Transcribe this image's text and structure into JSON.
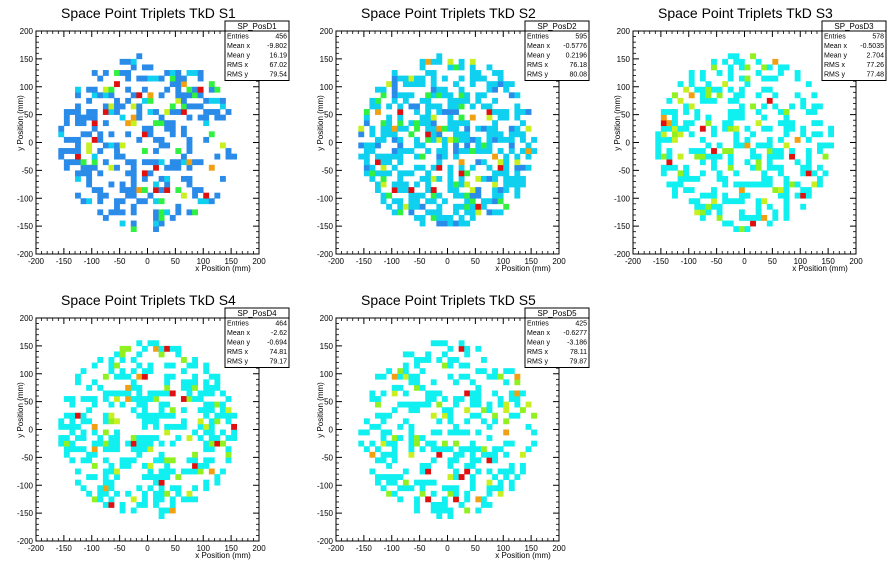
{
  "chart_data": [
    {
      "type": "heatmap",
      "title": "Space Point Triplets TkD S1",
      "xlabel": "x Position (mm)",
      "ylabel": "y Position (mm)",
      "xlim": [
        -200,
        200
      ],
      "ylim": [
        -200,
        200
      ],
      "xticks": [
        "-200",
        "-150",
        "-100",
        "-50",
        "0",
        "50",
        "100",
        "150",
        "200"
      ],
      "yticks": [
        "-200",
        "-150",
        "-100",
        "-50",
        "0",
        "50",
        "100",
        "150",
        "200"
      ],
      "bin_width": 10,
      "stats": {
        "name": "SP_PosD1",
        "rows": [
          {
            "label": "Entries",
            "value": "456"
          },
          {
            "label": "Mean x",
            "value": "-9.802"
          },
          {
            "label": "Mean y",
            "value": "16.19"
          },
          {
            "label": "RMS x",
            "value": "67.02"
          },
          {
            "label": "RMS y",
            "value": "79.54"
          }
        ]
      },
      "palette": [
        "#2a8ce8",
        "#10d0f0",
        "#30f040",
        "#c8f020",
        "#f0a010",
        "#e01010"
      ],
      "entries": 456,
      "mean_x": -9.802,
      "mean_y": 16.19,
      "rms_x": 67.02,
      "rms_y": 79.54,
      "seed": 11
    },
    {
      "type": "heatmap",
      "title": "Space Point Triplets TkD S2",
      "xlabel": "x Position (mm)",
      "ylabel": "y Position (mm)",
      "xlim": [
        -200,
        200
      ],
      "ylim": [
        -200,
        200
      ],
      "xticks": [
        "-200",
        "-150",
        "-100",
        "-50",
        "0",
        "50",
        "100",
        "150",
        "200"
      ],
      "yticks": [
        "-200",
        "-150",
        "-100",
        "-50",
        "0",
        "50",
        "100",
        "150",
        "200"
      ],
      "bin_width": 10,
      "stats": {
        "name": "SP_PosD2",
        "rows": [
          {
            "label": "Entries",
            "value": "595"
          },
          {
            "label": "Mean x",
            "value": "-0.5776"
          },
          {
            "label": "Mean y",
            "value": "0.2196"
          },
          {
            "label": "RMS x",
            "value": "76.18"
          },
          {
            "label": "RMS y",
            "value": "80.08"
          }
        ]
      },
      "palette": [
        "#10d0f0",
        "#2a8ce8",
        "#30f040",
        "#c8f020",
        "#f0a010",
        "#e01010"
      ],
      "entries": 595,
      "mean_x": -0.5776,
      "mean_y": 0.2196,
      "rms_x": 76.18,
      "rms_y": 80.08,
      "seed": 23
    },
    {
      "type": "heatmap",
      "title": "Space Point Triplets TkD S3",
      "xlabel": "x Position (mm)",
      "ylabel": "y Position (mm)",
      "xlim": [
        -200,
        200
      ],
      "ylim": [
        -200,
        200
      ],
      "xticks": [
        "-200",
        "-150",
        "-100",
        "-50",
        "0",
        "50",
        "100",
        "150",
        "200"
      ],
      "yticks": [
        "-200",
        "-150",
        "-100",
        "-50",
        "0",
        "50",
        "100",
        "150",
        "200"
      ],
      "bin_width": 10,
      "stats": {
        "name": "SP_PosD3",
        "rows": [
          {
            "label": "Entries",
            "value": "578"
          },
          {
            "label": "Mean x",
            "value": "-0.5035"
          },
          {
            "label": "Mean y",
            "value": "2.704"
          },
          {
            "label": "RMS x",
            "value": "77.26"
          },
          {
            "label": "RMS y",
            "value": "77.48"
          }
        ]
      },
      "palette": [
        "#10f0f0",
        "#10f0f0",
        "#90f020",
        "#c8f020",
        "#f0a010",
        "#e01010"
      ],
      "entries": 578,
      "mean_x": -0.5035,
      "mean_y": 2.704,
      "rms_x": 77.26,
      "rms_y": 77.48,
      "seed": 37
    },
    {
      "type": "heatmap",
      "title": "Space Point Triplets TkD S4",
      "xlabel": "x Position (mm)",
      "ylabel": "y Position (mm)",
      "xlim": [
        -200,
        200
      ],
      "ylim": [
        -200,
        200
      ],
      "xticks": [
        "-200",
        "-150",
        "-100",
        "-50",
        "0",
        "50",
        "100",
        "150",
        "200"
      ],
      "yticks": [
        "-200",
        "-150",
        "-100",
        "-50",
        "0",
        "50",
        "100",
        "150",
        "200"
      ],
      "bin_width": 10,
      "stats": {
        "name": "SP_PosD4",
        "rows": [
          {
            "label": "Entries",
            "value": "464"
          },
          {
            "label": "Mean x",
            "value": "-2.62"
          },
          {
            "label": "Mean y",
            "value": "-0.694"
          },
          {
            "label": "RMS x",
            "value": "74.81"
          },
          {
            "label": "RMS y",
            "value": "79.17"
          }
        ]
      },
      "palette": [
        "#10f0f0",
        "#10f0f0",
        "#90f020",
        "#c8f020",
        "#f0a010",
        "#e01010"
      ],
      "entries": 464,
      "mean_x": -2.62,
      "mean_y": -0.694,
      "rms_x": 74.81,
      "rms_y": 79.17,
      "seed": 53
    },
    {
      "type": "heatmap",
      "title": "Space Point Triplets TkD S5",
      "xlabel": "x Position (mm)",
      "ylabel": "y Position (mm)",
      "xlim": [
        -200,
        200
      ],
      "ylim": [
        -200,
        200
      ],
      "xticks": [
        "-200",
        "-150",
        "-100",
        "-50",
        "0",
        "50",
        "100",
        "150",
        "200"
      ],
      "yticks": [
        "-200",
        "-150",
        "-100",
        "-50",
        "0",
        "50",
        "100",
        "150",
        "200"
      ],
      "bin_width": 10,
      "stats": {
        "name": "SP_PosD5",
        "rows": [
          {
            "label": "Entries",
            "value": "425"
          },
          {
            "label": "Mean x",
            "value": "-0.6277"
          },
          {
            "label": "Mean y",
            "value": "-3.186"
          },
          {
            "label": "RMS x",
            "value": "78.11"
          },
          {
            "label": "RMS y",
            "value": "79.87"
          }
        ]
      },
      "palette": [
        "#10f0f0",
        "#10f0f0",
        "#90f020",
        "#c8f020",
        "#f0a010",
        "#e01010"
      ],
      "entries": 425,
      "mean_x": -0.6277,
      "mean_y": -3.186,
      "rms_x": 78.11,
      "rms_y": 79.87,
      "seed": 71
    }
  ]
}
